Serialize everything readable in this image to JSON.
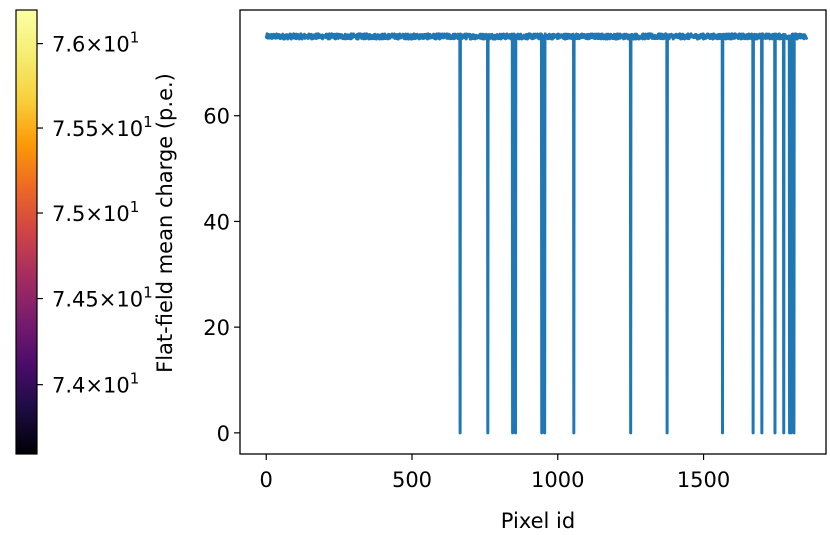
{
  "chart_data": [
    {
      "type": "colorbar",
      "colormap": "inferno",
      "scale": "log",
      "range": [
        73.6,
        76.2
      ],
      "tick_values": [
        74.0,
        74.5,
        75.0,
        75.5,
        76.0
      ],
      "tick_labels": [
        {
          "mantissa": "7.4",
          "exp": "1"
        },
        {
          "mantissa": "7.45",
          "exp": "1"
        },
        {
          "mantissa": "7.5",
          "exp": "1"
        },
        {
          "mantissa": "7.55",
          "exp": "1"
        },
        {
          "mantissa": "7.6",
          "exp": "1"
        }
      ],
      "times_symbol": "×",
      "base": "10"
    },
    {
      "type": "line",
      "xlabel": "Pixel id",
      "ylabel": "Flat-field mean charge (p.e.)",
      "xlim": [
        -90,
        1920
      ],
      "ylim": [
        -4,
        80
      ],
      "xticks": [
        0,
        500,
        1000,
        1500
      ],
      "xtick_labels": [
        "0",
        "500",
        "1000",
        "1500"
      ],
      "yticks": [
        0,
        20,
        40,
        60
      ],
      "ytick_labels": [
        "0",
        "20",
        "40",
        "60"
      ],
      "grid": false,
      "series_color": "#1f77b4",
      "n_pixels": 1855,
      "baseline_value": 75.0,
      "baseline_noise": 0.5,
      "dead_pixels": [
        665,
        760,
        845,
        855,
        945,
        955,
        1055,
        1250,
        1375,
        1565,
        1670,
        1700,
        1745,
        1775,
        1795,
        1800,
        1810
      ]
    }
  ]
}
